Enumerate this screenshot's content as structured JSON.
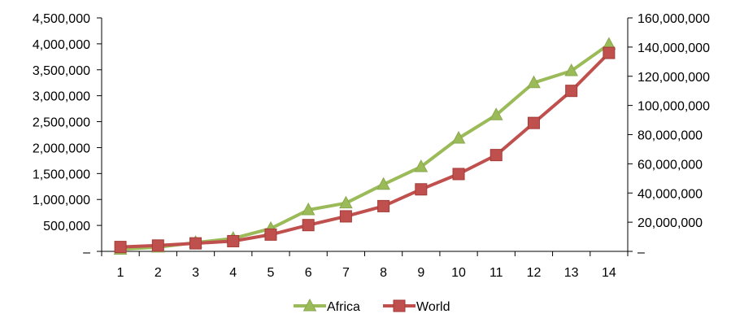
{
  "chart_data": {
    "type": "line",
    "title": "",
    "xlabel": "",
    "ylabel": "",
    "categories": [
      "1",
      "2",
      "3",
      "4",
      "5",
      "6",
      "7",
      "8",
      "9",
      "10",
      "11",
      "12",
      "13",
      "14"
    ],
    "x_tick_labels": [
      "1",
      "2",
      "3",
      "4",
      "5",
      "6",
      "7",
      "8",
      "9",
      "10",
      "11",
      "12",
      "13",
      "14"
    ],
    "y_left": {
      "range": [
        0,
        4500000
      ],
      "tick_labels": [
        "–",
        "500,000",
        "1,000,000",
        "1,500,000",
        "2,000,000",
        "2,500,000",
        "3,000,000",
        "3,500,000",
        "4,000,000",
        "4,500,000"
      ]
    },
    "y_right": {
      "range": [
        0,
        160000000
      ],
      "tick_labels": [
        "–",
        "20,000,000",
        "40,000,000",
        "60,000,000",
        "80,000,000",
        "100,000,000",
        "120,000,000",
        "140,000,000",
        "160,000,000"
      ]
    },
    "grid": false,
    "legend_position": "bottom",
    "series": [
      {
        "name": "Africa",
        "axis": "left",
        "color": "#9BBB59",
        "marker": "triangle",
        "values": [
          40000,
          80000,
          170000,
          250000,
          440000,
          800000,
          930000,
          1290000,
          1630000,
          2180000,
          2630000,
          3250000,
          3480000,
          3990000
        ]
      },
      {
        "name": "World",
        "axis": "right",
        "color": "#C0504D",
        "marker": "square",
        "values": [
          3000000,
          4000000,
          5500000,
          7000000,
          11500000,
          18000000,
          24000000,
          31000000,
          42500000,
          53000000,
          66000000,
          88000000,
          110000000,
          136000000
        ]
      }
    ]
  }
}
